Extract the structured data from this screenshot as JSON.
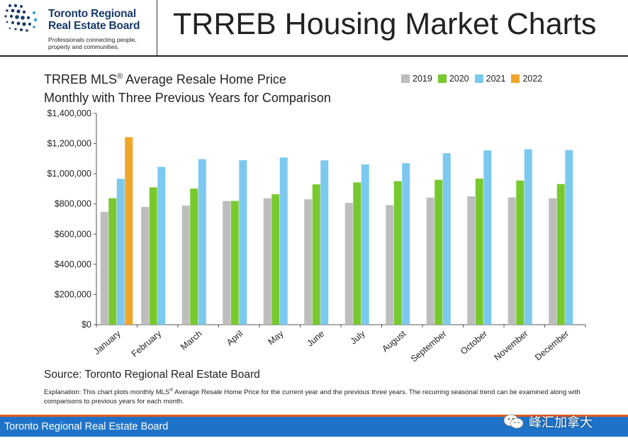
{
  "header": {
    "org_line1": "Toronto Regional",
    "org_line2": "Real Estate Board",
    "tagline": "Professionals connecting people, property and communities.",
    "title": "TRREB Housing Market Charts"
  },
  "chart_heading": {
    "line1_prefix": "TRREB MLS",
    "line1_reg": "®",
    "line1_suffix": " Average Resale Home Price",
    "line2": "Monthly with Three Previous Years for Comparison"
  },
  "colors": {
    "2019": "#bdbdbd",
    "2020": "#78c92e",
    "2021": "#7cc9ef",
    "2022": "#f0a62a",
    "axis": "#555555"
  },
  "chart_data": {
    "type": "bar",
    "categories": [
      "January",
      "February",
      "March",
      "April",
      "May",
      "June",
      "July",
      "August",
      "September",
      "October",
      "November",
      "December"
    ],
    "series": [
      {
        "name": "2019",
        "values": [
          748000,
          780000,
          789000,
          820000,
          838000,
          831000,
          807000,
          792000,
          842000,
          851000,
          843000,
          838000
        ]
      },
      {
        "name": "2020",
        "values": [
          838000,
          910000,
          902000,
          820000,
          864000,
          930000,
          943000,
          951000,
          960000,
          968000,
          955000,
          932000
        ]
      },
      {
        "name": "2021",
        "values": [
          967000,
          1046000,
          1097000,
          1090000,
          1108000,
          1089000,
          1062000,
          1070000,
          1136000,
          1155000,
          1163000,
          1157000
        ]
      },
      {
        "name": "2022",
        "values": [
          1243000,
          null,
          null,
          null,
          null,
          null,
          null,
          null,
          null,
          null,
          null,
          null
        ]
      }
    ],
    "ylim": [
      0,
      1400000
    ],
    "y_ticks": [
      "$0",
      "$200,000",
      "$400,000",
      "$600,000",
      "$800,000",
      "$1,000,000",
      "$1,200,000",
      "$1,400,000"
    ],
    "y_tick_values": [
      0,
      200000,
      400000,
      600000,
      800000,
      1000000,
      1200000,
      1400000
    ],
    "legend_position": "top-right",
    "grid": false
  },
  "source": "Source: Toronto Regional Real Estate Board",
  "explanation": {
    "before_reg": "Explanation: This chart plots monthly MLS",
    "reg": "®",
    "after_reg": " Average Resale Home Price for the current year and the previous three years. The recurring seasonal trend can be examined along with comparisons to previous years for each month."
  },
  "footer": {
    "text": "Toronto Regional Real Estate Board",
    "watermark": "峰汇加拿大",
    "watermark_icon": "wechat-icon"
  }
}
